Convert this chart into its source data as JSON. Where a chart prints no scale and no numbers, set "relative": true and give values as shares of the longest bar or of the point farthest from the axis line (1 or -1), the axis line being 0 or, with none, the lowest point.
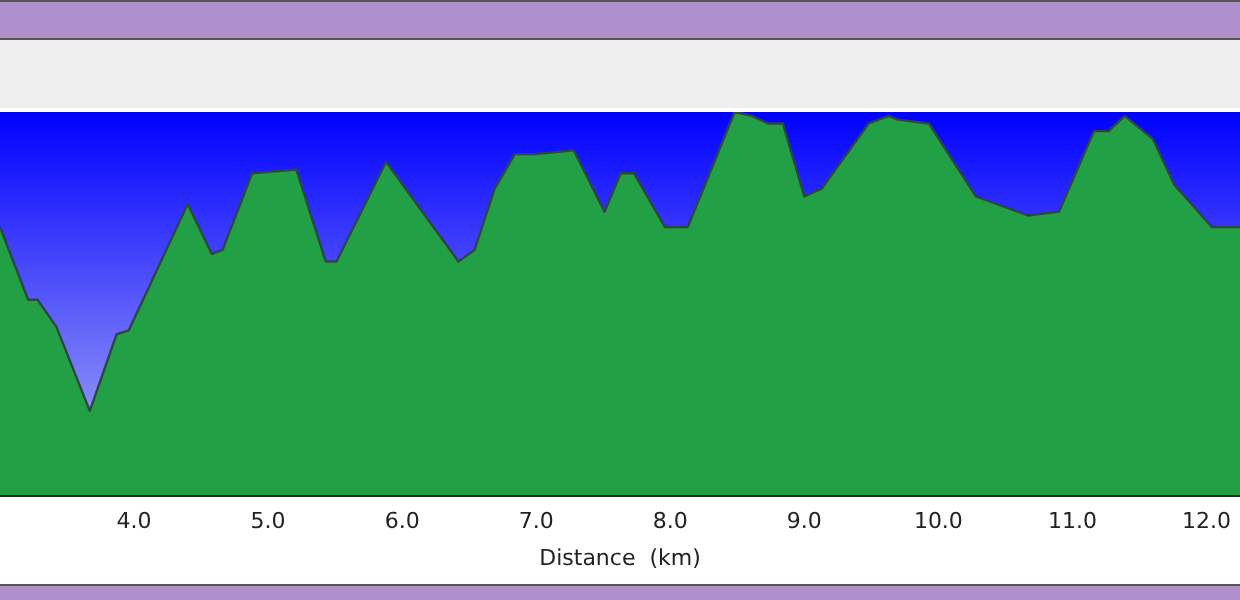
{
  "chart_data": {
    "type": "area",
    "xlabel": "Distance  (km)",
    "relative": true,
    "xlim": [
      3.0,
      12.25
    ],
    "xticks": [
      {
        "value": 4,
        "label": "4.0"
      },
      {
        "value": 5,
        "label": "5.0"
      },
      {
        "value": 6,
        "label": "6.0"
      },
      {
        "value": 7,
        "label": "7.0"
      },
      {
        "value": 8,
        "label": "8.0"
      },
      {
        "value": 9,
        "label": "9.0"
      },
      {
        "value": 10,
        "label": "10.0"
      },
      {
        "value": 11,
        "label": "11.0"
      },
      {
        "value": 12,
        "label": "12.0"
      }
    ],
    "x": [
      3.0,
      3.21,
      3.28,
      3.42,
      3.67,
      3.87,
      3.96,
      4.4,
      4.58,
      4.66,
      4.88,
      5.21,
      5.43,
      5.51,
      5.88,
      6.42,
      6.54,
      6.69,
      6.84,
      6.99,
      7.28,
      7.51,
      7.63,
      7.73,
      7.96,
      8.13,
      8.48,
      8.61,
      8.73,
      8.84,
      9.0,
      9.13,
      9.48,
      9.63,
      9.7,
      9.93,
      10.28,
      10.67,
      10.9,
      11.16,
      11.27,
      11.39,
      11.6,
      11.76,
      12.04,
      12.25
    ],
    "series": [
      {
        "color": "#22a045",
        "values": [
          0.7,
          0.51,
          0.51,
          0.44,
          0.22,
          0.42,
          0.43,
          0.76,
          0.63,
          0.64,
          0.84,
          0.85,
          0.61,
          0.61,
          0.87,
          0.61,
          0.64,
          0.8,
          0.89,
          0.89,
          0.9,
          0.74,
          0.84,
          0.84,
          0.7,
          0.7,
          1,
          0.99,
          0.97,
          0.97,
          0.78,
          0.8,
          0.97,
          0.99,
          0.98,
          0.97,
          0.78,
          0.73,
          0.74,
          0.95,
          0.95,
          0.99,
          0.93,
          0.81,
          0.7,
          0.7
        ]
      }
    ]
  }
}
